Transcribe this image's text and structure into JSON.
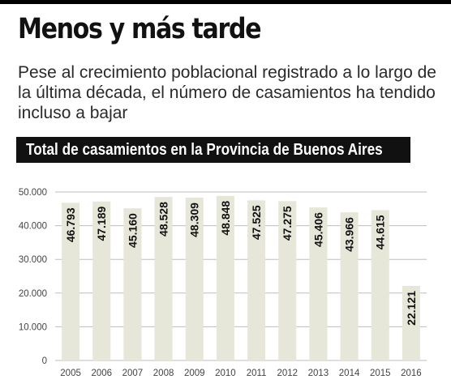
{
  "header": {
    "title": "Menos y más tarde",
    "subtitle": "Pese al crecimiento poblacional registrado a lo largo de la última década, el número de casamientos ha tendido incluso a bajar"
  },
  "chart_data": {
    "type": "bar",
    "title": "Total de casamientos en la Provincia de Buenos Aires",
    "categories": [
      "2005",
      "2006",
      "2007",
      "2008",
      "2009",
      "2010",
      "2011",
      "2012",
      "2013",
      "2014",
      "2015",
      "2016"
    ],
    "values": [
      46793,
      47189,
      45160,
      48528,
      48309,
      48848,
      47525,
      47275,
      45406,
      43966,
      44615,
      22121
    ],
    "value_labels": [
      "46.793",
      "47.189",
      "45.160",
      "48.528",
      "48.309",
      "48.848",
      "47.525",
      "47.275",
      "45.406",
      "43.966",
      "44.615",
      "22.121"
    ],
    "yticks": [
      0,
      10000,
      20000,
      30000,
      40000,
      50000
    ],
    "ytick_labels": [
      "0",
      "10.000",
      "20.000",
      "30.000",
      "40.000",
      "50.000"
    ],
    "ylim": [
      0,
      50000
    ],
    "xlabel": "",
    "ylabel": "",
    "grid": true,
    "colors": {
      "bar": "#e6e6d9",
      "grid": "#bdbdbd",
      "label": "#111111",
      "axis_text": "#444444"
    }
  }
}
